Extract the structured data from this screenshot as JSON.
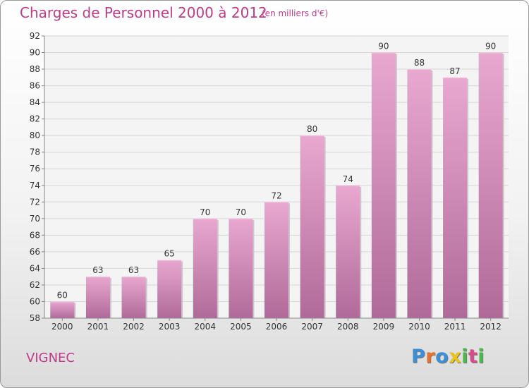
{
  "title": "Charges de Personnel 2000 à 2012",
  "subtitle": "(en milliers d'€)",
  "commune": "VIGNEC",
  "logo": {
    "letters": [
      "P",
      "r",
      "o",
      "x",
      "i",
      "t",
      "i"
    ],
    "colors": [
      "#3a8fd8",
      "#e8702a",
      "#3a8fd8",
      "#e8c41c",
      "#4ab84a",
      "#d84a8a",
      "#4ab84a"
    ]
  },
  "colors": {
    "bar": "#d88ab8",
    "bar_dark": "#b2679a",
    "text": "#c03a8a"
  },
  "chart_data": {
    "type": "bar",
    "categories": [
      "2000",
      "2001",
      "2002",
      "2003",
      "2004",
      "2005",
      "2006",
      "2007",
      "2008",
      "2009",
      "2010",
      "2011",
      "2012"
    ],
    "values": [
      60,
      63,
      63,
      65,
      70,
      70,
      72,
      80,
      74,
      90,
      88,
      87,
      90
    ],
    "ylim": [
      58,
      92
    ],
    "yticks": [
      58,
      60,
      62,
      64,
      66,
      68,
      70,
      72,
      74,
      76,
      78,
      80,
      82,
      84,
      86,
      88,
      90,
      92
    ],
    "grid": true
  }
}
